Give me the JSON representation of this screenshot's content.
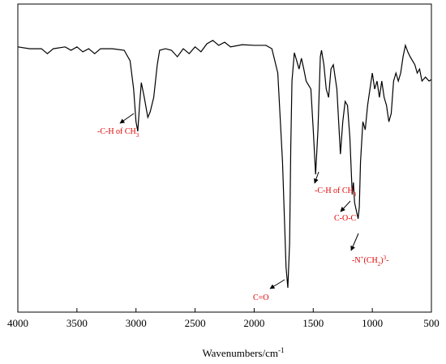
{
  "chart_data": {
    "type": "line",
    "x_label": [
      {
        "text": "Wavenumbers/cm"
      },
      {
        "text": "-1",
        "shift": "sup"
      }
    ],
    "x": [
      4000,
      3900,
      3800,
      3750,
      3700,
      3600,
      3550,
      3500,
      3450,
      3400,
      3350,
      3300,
      3200,
      3100,
      3050,
      3020,
      3000,
      2985,
      2970,
      2955,
      2930,
      2900,
      2880,
      2850,
      2820,
      2800,
      2750,
      2700,
      2650,
      2600,
      2550,
      2500,
      2450,
      2400,
      2350,
      2300,
      2250,
      2200,
      2100,
      2000,
      1900,
      1850,
      1800,
      1760,
      1730,
      1715,
      1700,
      1690,
      1680,
      1660,
      1640,
      1620,
      1600,
      1580,
      1560,
      1520,
      1500,
      1480,
      1460,
      1440,
      1430,
      1410,
      1390,
      1370,
      1350,
      1330,
      1300,
      1270,
      1250,
      1230,
      1210,
      1190,
      1170,
      1160,
      1150,
      1120,
      1110,
      1100,
      1080,
      1060,
      1040,
      1020,
      1000,
      980,
      960,
      940,
      920,
      900,
      880,
      860,
      840,
      820,
      800,
      780,
      760,
      740,
      720,
      700,
      680,
      660,
      640,
      620,
      600,
      580,
      550,
      520,
      500
    ],
    "series": [
      {
        "color": "#000000",
        "values": [
          86.1,
          85.5,
          85.5,
          83.9,
          85.5,
          86.1,
          85,
          86.1,
          84.5,
          85.5,
          83.9,
          85.5,
          85.5,
          85,
          81.6,
          72.4,
          61.8,
          58.7,
          67.1,
          74.5,
          69.7,
          63.2,
          65,
          69.7,
          80.3,
          85,
          85.5,
          85,
          82.9,
          85.5,
          83.9,
          86.1,
          84.5,
          87.1,
          88.2,
          86.6,
          87.6,
          86.1,
          86.8,
          86.6,
          86.6,
          85.5,
          77.6,
          48.7,
          14.5,
          7.9,
          22.4,
          53.9,
          75,
          84.2,
          81.6,
          78.9,
          82.4,
          78.9,
          75,
          72.4,
          59.2,
          44.7,
          59.2,
          82.9,
          85,
          80.3,
          72.4,
          69.7,
          78.9,
          80.3,
          72.4,
          51.3,
          61.8,
          68.4,
          67.1,
          56.6,
          38.2,
          42.1,
          35.5,
          30.3,
          34.2,
          48.7,
          61.8,
          59.2,
          67.1,
          72.4,
          77.6,
          72.4,
          75,
          69.7,
          75,
          69.7,
          67.1,
          61.8,
          64.5,
          75,
          77.6,
          75,
          77.6,
          82.9,
          86.6,
          84.5,
          82.9,
          81.6,
          80.3,
          77.6,
          78.9,
          75,
          76.3,
          75,
          75.5
        ]
      }
    ],
    "xlim": [
      4000,
      500
    ],
    "xticks": [
      4000,
      3500,
      3000,
      2500,
      2000,
      1500,
      1000,
      500
    ],
    "ylim": [
      0,
      100
    ],
    "annotations": [
      {
        "text": [
          {
            "text": "-C-H of CH"
          },
          {
            "text": "3",
            "shift": "sub"
          }
        ]
      },
      {
        "text": [
          {
            "text": "-C-H of CH"
          },
          {
            "text": "3",
            "shift": "sub"
          }
        ]
      },
      {
        "text": [
          {
            "text": "C-O-C"
          }
        ]
      },
      {
        "text": [
          {
            "text": "-N"
          },
          {
            "text": "+",
            "shift": "sup"
          },
          {
            "text": "(CH"
          },
          {
            "text": "2",
            "shift": "sub"
          },
          {
            "text": ")"
          },
          {
            "text": "3",
            "shift": "sup"
          },
          {
            "text": "-"
          }
        ]
      },
      {
        "text": [
          {
            "text": "C=O"
          }
        ]
      }
    ]
  }
}
